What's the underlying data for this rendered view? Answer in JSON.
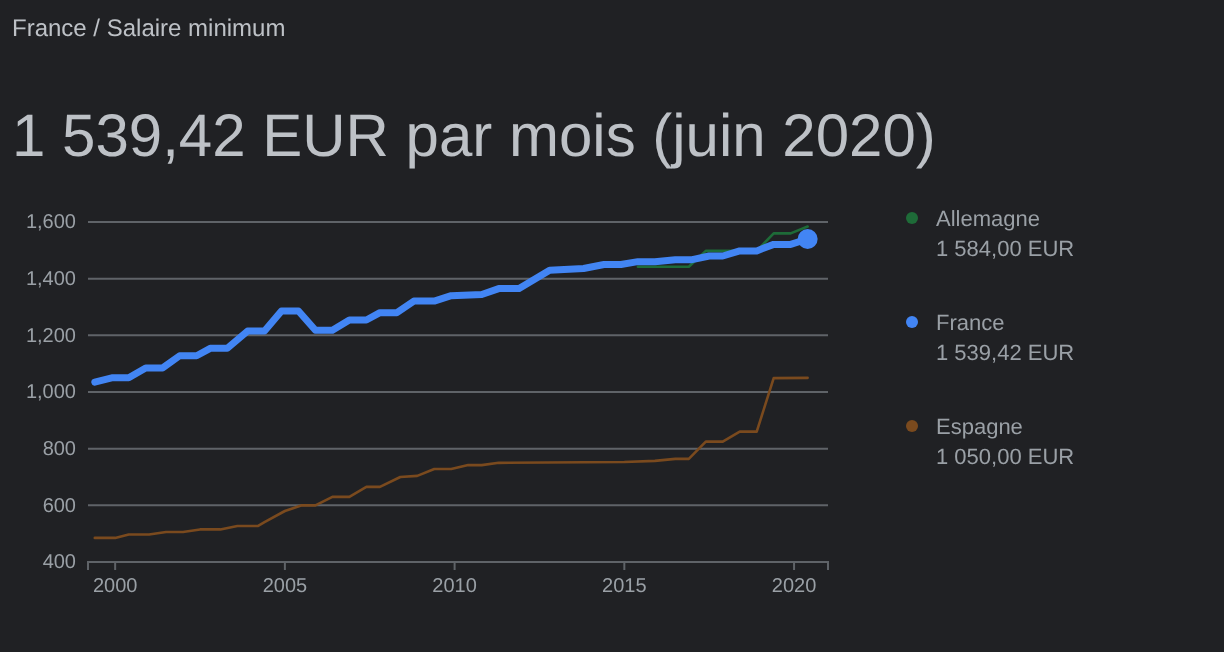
{
  "chart_data": {
    "type": "line",
    "title": "1 539,42 EUR par mois (juin 2020)",
    "subtitle": "France / Salaire minimum",
    "xlim": [
      1999.2,
      2021.0
    ],
    "xticks": [
      2000,
      2005,
      2010,
      2015,
      2020
    ],
    "ylim": [
      400,
      1600
    ],
    "yticks": [
      400,
      600,
      800,
      {
        "value": 1000,
        "label": "1,000"
      },
      {
        "value": 1200,
        "label": "1,200"
      },
      {
        "value": 1400,
        "label": "1,400"
      },
      {
        "value": 1600,
        "label": "1,600"
      }
    ],
    "grid": "y",
    "legend": "right",
    "annotations": [
      "1 584,00 EUR",
      "1 539,42 EUR",
      "1 050,00 EUR"
    ],
    "series": [
      {
        "name": "Allemagne",
        "color": "#1e6b38",
        "x": [
          2015.4,
          2016.9,
          2017.4,
          2018.0,
          2018.9,
          2019.4,
          2019.9,
          2020.4
        ],
        "values": [
          1442,
          1442,
          1498,
          1498,
          1498,
          1560,
          1560,
          1584
        ]
      },
      {
        "name": "France",
        "color": "#4285f4",
        "x": [
          1999.4,
          1999.9,
          2000.4,
          2000.9,
          2001.4,
          2001.9,
          2002.4,
          2002.8,
          2003.3,
          2003.9,
          2004.4,
          2004.9,
          2005.4,
          2005.9,
          2006.4,
          2006.9,
          2007.4,
          2007.8,
          2008.3,
          2008.8,
          2009.4,
          2009.9,
          2010.8,
          2011.3,
          2011.9,
          2012.8,
          2013.8,
          2014.4,
          2014.9,
          2015.4,
          2015.9,
          2016.5,
          2017.0,
          2017.5,
          2017.9,
          2018.4,
          2018.9,
          2019.4,
          2019.9,
          2020.4
        ],
        "values": [
          1035,
          1050,
          1050,
          1085,
          1085,
          1128,
          1128,
          1154,
          1154,
          1215,
          1215,
          1286,
          1286,
          1218,
          1218,
          1254,
          1254,
          1280,
          1280,
          1321,
          1321,
          1340,
          1344,
          1365,
          1365,
          1430,
          1436,
          1450,
          1450,
          1460,
          1460,
          1467,
          1467,
          1480,
          1480,
          1498,
          1498,
          1521,
          1521,
          1540
        ]
      },
      {
        "name": "Espagne",
        "color": "#7a4a1e",
        "x": [
          1999.4,
          2000.0,
          2000.4,
          2001.0,
          2001.5,
          2002.0,
          2002.5,
          2003.1,
          2003.6,
          2004.2,
          2004.4,
          2005.0,
          2005.5,
          2005.9,
          2006.4,
          2006.9,
          2007.4,
          2007.8,
          2008.4,
          2008.9,
          2009.4,
          2009.9,
          2010.4,
          2010.8,
          2011.3,
          2015.0,
          2015.9,
          2016.5,
          2016.9,
          2017.4,
          2017.9,
          2018.4,
          2018.9,
          2019.4,
          2020.4
        ],
        "values": [
          485,
          485,
          497,
          497,
          506,
          506,
          515,
          515,
          527,
          527,
          541,
          580,
          600,
          600,
          630,
          630,
          665,
          665,
          700,
          704,
          728,
          728,
          742,
          742,
          750,
          753,
          757,
          764,
          764,
          825,
          825,
          860,
          860,
          1049,
          1050
        ]
      },
      {
        "type": "scatter",
        "color": "#4285f4",
        "x": [
          2020.4
        ],
        "values": [
          1540
        ]
      }
    ]
  }
}
